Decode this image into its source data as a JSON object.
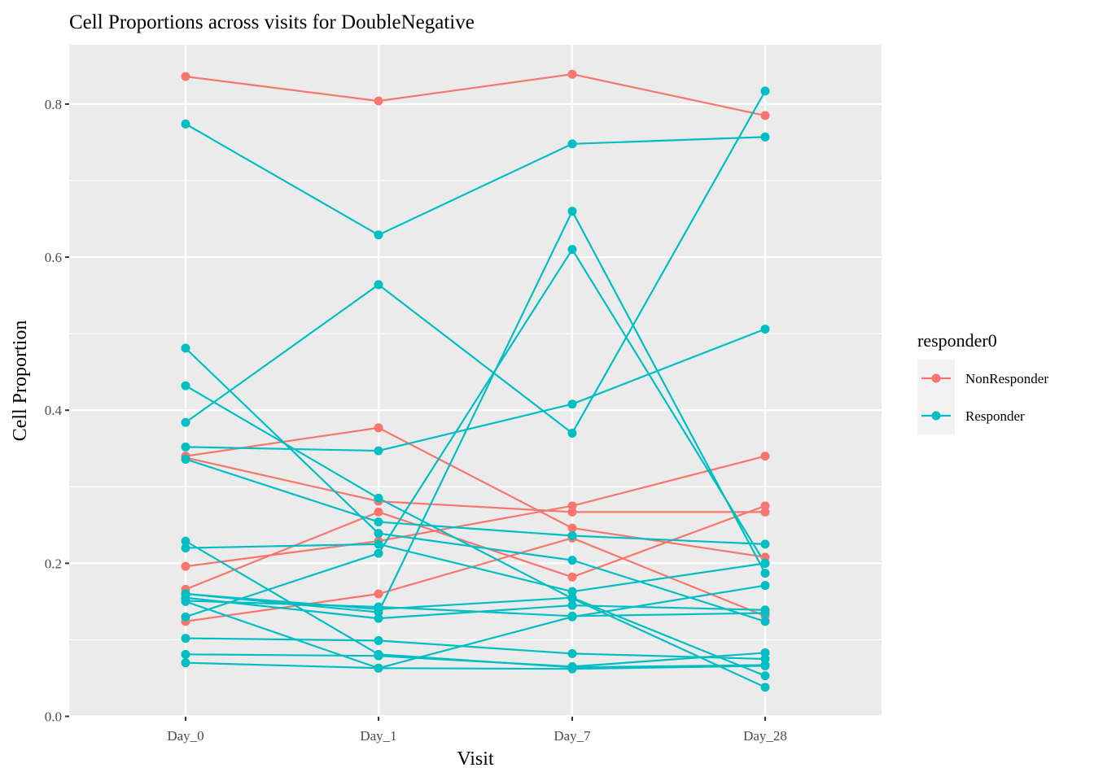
{
  "chart_data": {
    "type": "line",
    "title": "Cell Proportions across visits for DoubleNegative",
    "xlabel": "Visit",
    "ylabel": "Cell Proportion",
    "categories": [
      "Day_0",
      "Day_1",
      "Day_7",
      "Day_28"
    ],
    "ylim": [
      -0.0005,
      0.8775
    ],
    "yticks": [
      0.0,
      0.2,
      0.4,
      0.6,
      0.8
    ],
    "ytick_labels": [
      "0.0",
      "0.2",
      "0.4",
      "0.6",
      "0.8"
    ],
    "grid": true,
    "legend": {
      "title": "responder0",
      "placement": "right",
      "entries": [
        {
          "label": "NonResponder",
          "color": "#F8766D"
        },
        {
          "label": "Responder",
          "color": "#00BFC4"
        }
      ]
    },
    "colors": {
      "NonResponder": "#F8766D",
      "Responder": "#00BFC4"
    },
    "series": [
      {
        "group": "NonResponder",
        "values": [
          0.836,
          0.804,
          0.839,
          0.785
        ]
      },
      {
        "group": "NonResponder",
        "values": [
          0.34,
          0.377,
          0.246,
          0.208
        ]
      },
      {
        "group": "NonResponder",
        "values": [
          0.338,
          0.281,
          0.267,
          0.267
        ]
      },
      {
        "group": "NonResponder",
        "values": [
          0.196,
          0.229,
          0.275,
          0.34
        ]
      },
      {
        "group": "NonResponder",
        "values": [
          0.166,
          0.267,
          0.182,
          0.275
        ]
      },
      {
        "group": "NonResponder",
        "values": [
          0.124,
          0.16,
          0.233,
          0.131
        ]
      },
      {
        "group": "Responder",
        "values": [
          0.774,
          0.629,
          0.748,
          0.757
        ]
      },
      {
        "group": "Responder",
        "values": [
          0.384,
          0.564,
          0.37,
          0.817
        ]
      },
      {
        "group": "Responder",
        "values": [
          0.481,
          0.239,
          0.204,
          0.124
        ]
      },
      {
        "group": "Responder",
        "values": [
          0.432,
          0.285,
          0.154,
          0.038
        ]
      },
      {
        "group": "Responder",
        "values": [
          0.352,
          0.347,
          0.408,
          0.506
        ]
      },
      {
        "group": "Responder",
        "values": [
          0.336,
          0.254,
          0.236,
          0.225
        ]
      },
      {
        "group": "Responder",
        "values": [
          0.229,
          0.081,
          0.064,
          0.067
        ]
      },
      {
        "group": "Responder",
        "values": [
          0.22,
          0.225,
          0.163,
          0.2
        ]
      },
      {
        "group": "Responder",
        "values": [
          0.16,
          0.136,
          0.66,
          0.187
        ]
      },
      {
        "group": "Responder",
        "values": [
          0.155,
          0.128,
          0.145,
          0.139
        ]
      },
      {
        "group": "Responder",
        "values": [
          0.151,
          0.143,
          0.131,
          0.135
        ]
      },
      {
        "group": "Responder",
        "values": [
          0.13,
          0.213,
          0.61,
          0.2
        ]
      },
      {
        "group": "Responder",
        "values": [
          0.102,
          0.099,
          0.082,
          0.075
        ]
      },
      {
        "group": "Responder",
        "values": [
          0.081,
          0.079,
          0.065,
          0.083
        ]
      },
      {
        "group": "Responder",
        "values": [
          0.07,
          0.063,
          0.062,
          0.066
        ]
      },
      {
        "group": "Responder",
        "values": [
          0.15,
          0.063,
          0.13,
          0.171
        ]
      },
      {
        "group": "Responder",
        "values": [
          0.16,
          0.14,
          0.155,
          0.053
        ]
      }
    ]
  }
}
